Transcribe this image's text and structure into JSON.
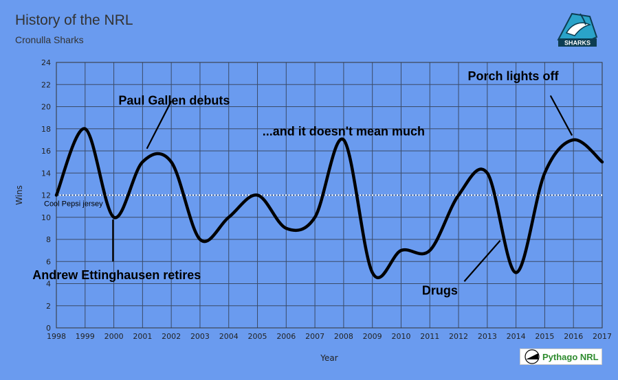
{
  "header": {
    "title": "History of the NRL",
    "subtitle": "Cronulla Sharks"
  },
  "logos": {
    "team_logo_text": "SHARKS",
    "watermark": "Pythago NRL"
  },
  "colors": {
    "background": "#6a9bef",
    "line": "#000000",
    "grid": "#3a4a66",
    "reference": "#ffffff",
    "pythago_text": "#2e8b2e"
  },
  "chart_data": {
    "type": "line",
    "title": "History of the NRL",
    "subtitle": "Cronulla Sharks",
    "xlabel": "Year",
    "ylabel": "Wins",
    "xlim": [
      1998,
      2017
    ],
    "ylim": [
      0,
      24
    ],
    "x_ticks": [
      1998,
      1999,
      2000,
      2001,
      2002,
      2003,
      2004,
      2005,
      2006,
      2007,
      2008,
      2009,
      2010,
      2011,
      2012,
      2013,
      2014,
      2015,
      2016,
      2017
    ],
    "y_ticks": [
      0,
      2,
      4,
      6,
      8,
      10,
      12,
      14,
      16,
      18,
      20,
      22,
      24
    ],
    "grid": true,
    "series": [
      {
        "name": "Wins",
        "x": [
          1998,
          1999,
          2000,
          2001,
          2002,
          2003,
          2004,
          2005,
          2006,
          2007,
          2008,
          2009,
          2010,
          2011,
          2012,
          2013,
          2014,
          2015,
          2016,
          2017
        ],
        "values": [
          12,
          18,
          10,
          15,
          15,
          8,
          10,
          12,
          9,
          10,
          17,
          5,
          7,
          7,
          12,
          14,
          5,
          14,
          17,
          15
        ]
      }
    ],
    "reference_line": {
      "y": 12,
      "style": "dotted",
      "label": "Cool Pepsi jersey"
    },
    "annotations": [
      {
        "text": "Paul Gallen debuts",
        "x": 2002.1,
        "y": 20.2,
        "line_from": [
          2002.0,
          20.5
        ],
        "line_to": [
          2001.15,
          16.2
        ]
      },
      {
        "text": "...and it doesn't mean much",
        "x": 2008.0,
        "y": 17.4,
        "line_from": null,
        "line_to": null
      },
      {
        "text": "Porch lights off",
        "x": 2013.9,
        "y": 22.4,
        "line_from": [
          2015.2,
          21.0
        ],
        "line_to": [
          2015.95,
          17.4
        ]
      },
      {
        "text": "Andrew Ettinghausen retires",
        "x": 2000.1,
        "y": 4.4,
        "line_from": [
          1999.97,
          6.0
        ],
        "line_to": [
          1999.97,
          9.8
        ]
      },
      {
        "text": "Drugs",
        "x": 2011.35,
        "y": 3.0,
        "line_from": [
          2012.2,
          4.2
        ],
        "line_to": [
          2013.45,
          7.9
        ]
      }
    ]
  }
}
